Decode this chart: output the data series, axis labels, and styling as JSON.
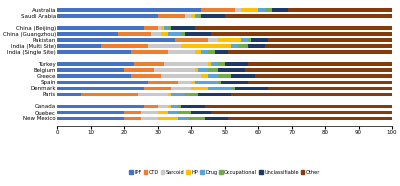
{
  "categories": [
    "Australia",
    "Saudi Arabia",
    "",
    "China (Beijing)",
    "China (Guangzhou)",
    "Pakistan",
    "India (Multi Site)",
    "India (Single Site)",
    "",
    "Turkey",
    "Belgium",
    "Greece",
    "Spain",
    "Denmark",
    "Paris",
    "",
    "Canada",
    "Quebec",
    "New Mexico"
  ],
  "series": {
    "IPF": [
      43,
      30,
      0,
      26,
      18,
      35,
      13,
      22,
      0,
      23,
      20,
      22,
      27,
      26,
      7,
      0,
      26,
      20,
      20
    ],
    "CTD": [
      10,
      8,
      0,
      4,
      10,
      10,
      14,
      11,
      0,
      9,
      9,
      9,
      9,
      8,
      17,
      0,
      4,
      5,
      5
    ],
    "Sarcoid": [
      2,
      2,
      0,
      1,
      3,
      3,
      10,
      8,
      0,
      13,
      12,
      12,
      4,
      6,
      9,
      0,
      3,
      5,
      5
    ],
    "HP": [
      5,
      1,
      0,
      1,
      2,
      7,
      15,
      2,
      0,
      1,
      1,
      2,
      1,
      5,
      1,
      0,
      1,
      3,
      6
    ],
    "Drug": [
      2,
      1,
      0,
      1,
      4,
      2,
      2,
      2,
      0,
      2,
      3,
      3,
      7,
      7,
      4,
      0,
      2,
      3,
      3
    ],
    "Occupational": [
      2,
      1,
      0,
      1,
      1,
      1,
      3,
      2,
      0,
      2,
      3,
      4,
      1,
      1,
      4,
      0,
      1,
      4,
      5
    ],
    "Unclassifiable": [
      5,
      7,
      0,
      7,
      8,
      5,
      5,
      4,
      0,
      7,
      8,
      7,
      8,
      10,
      10,
      0,
      7,
      6,
      7
    ],
    "Other": [
      31,
      50,
      0,
      59,
      54,
      37,
      38,
      49,
      0,
      43,
      44,
      41,
      43,
      37,
      48,
      0,
      56,
      54,
      49
    ]
  },
  "colors": {
    "IPF": "#4472c4",
    "CTD": "#ed7d31",
    "Sarcoid": "#c9c9c9",
    "HP": "#ffc000",
    "Drug": "#5ba3d9",
    "Occupational": "#70ad47",
    "Unclassifiable": "#203864",
    "Other": "#843c0c"
  },
  "xlim": [
    0,
    100
  ],
  "xticks": [
    0,
    10,
    20,
    30,
    40,
    50,
    60,
    70,
    80,
    90,
    100
  ],
  "legend_labels": [
    "IPF",
    "CTD",
    "Sarcoid",
    "HP",
    "Drug",
    "Occupational",
    "Unclassifiable",
    "Other"
  ],
  "figsize": [
    4.0,
    1.86
  ],
  "dpi": 100,
  "bar_height": 0.62,
  "group_gaps": [
    2,
    8
  ],
  "ytick_fontsize": 4.0,
  "xtick_fontsize": 4.0,
  "legend_fontsize": 3.6
}
